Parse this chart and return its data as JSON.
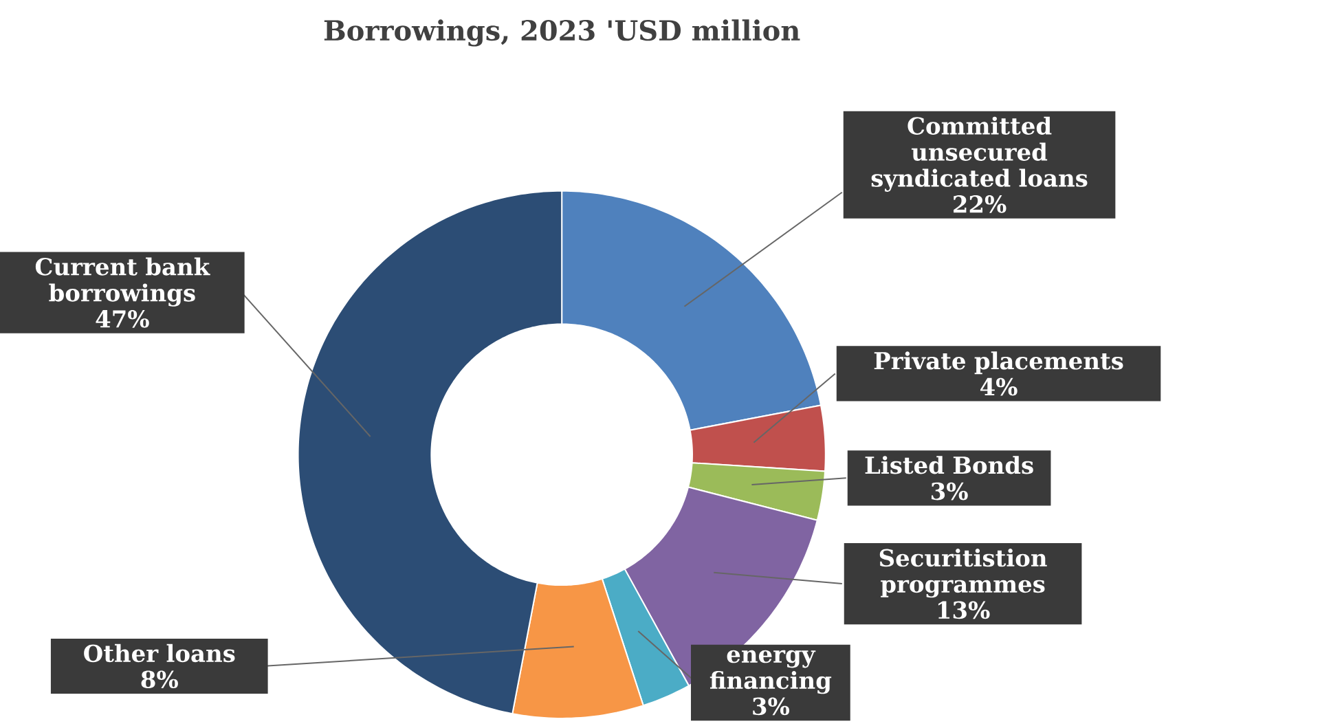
{
  "chart_data": {
    "type": "donut",
    "title": "Borrowings, 2023 'USD million",
    "categories": [
      "Committed unsecured syndicated loans",
      "Private placements",
      "Listed Bonds",
      "Securitistion programmes",
      "energy financing",
      "Other loans",
      "Current bank borrowings"
    ],
    "values": [
      22,
      4,
      3,
      13,
      3,
      8,
      47
    ],
    "value_labels": [
      "22%",
      "4%",
      "3%",
      "13%",
      "3%",
      "8%",
      "47%"
    ],
    "colors": [
      "#4f81bd",
      "#c0504d",
      "#9bbb59",
      "#8064a2",
      "#4bacc6",
      "#f79646",
      "#2c4d75"
    ]
  }
}
